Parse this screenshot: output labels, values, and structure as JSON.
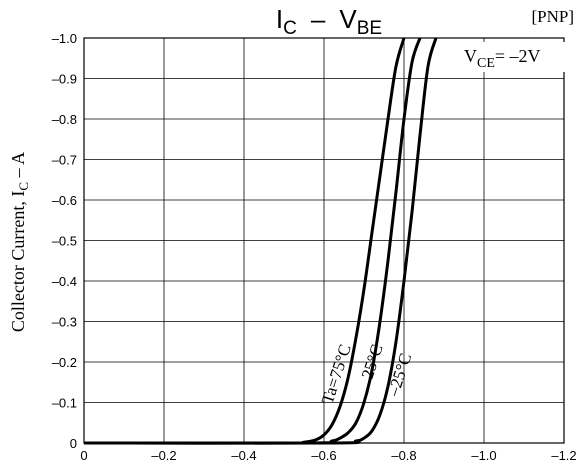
{
  "chart_data": {
    "type": "line",
    "title": {
      "main": "I",
      "main_sub": "C",
      "dash": "–",
      "second": "V",
      "second_sub": "BE"
    },
    "tag": "[PNP]",
    "condition": {
      "prefix": "V",
      "sub": "CE",
      "value": "= –2V"
    },
    "ylabel": {
      "text": "Collector Current, I",
      "sub": "C",
      "suffix": " – A"
    },
    "xlim": [
      0,
      -1.2
    ],
    "ylim": [
      0,
      -1.0
    ],
    "x_ticks": [
      0,
      -0.2,
      -0.4,
      -0.6,
      -0.8,
      -1.0,
      -1.2
    ],
    "x_tick_labels": [
      "0",
      "–0.2",
      "–0.4",
      "–0.6",
      "–0.8",
      "–1.0",
      "–1.2"
    ],
    "y_ticks": [
      0,
      -0.1,
      -0.2,
      -0.3,
      -0.4,
      -0.5,
      -0.6,
      -0.7,
      -0.8,
      -0.9,
      -1.0
    ],
    "y_tick_labels": [
      "0",
      "–0.1",
      "–0.2",
      "–0.3",
      "–0.4",
      "–0.5",
      "–0.6",
      "–0.7",
      "–0.8",
      "–0.9",
      "–1.0"
    ],
    "grid": true,
    "series": [
      {
        "name": "Ta=75°C",
        "x": [
          0,
          -0.5,
          -0.55,
          -0.58,
          -0.6,
          -0.62,
          -0.64,
          -0.66,
          -0.68,
          -0.7,
          -0.72,
          -0.74,
          -0.76,
          -0.78,
          -0.8
        ],
        "y": [
          0,
          0,
          -0.002,
          -0.008,
          -0.02,
          -0.045,
          -0.09,
          -0.16,
          -0.26,
          -0.38,
          -0.52,
          -0.66,
          -0.8,
          -0.93,
          -1.0
        ]
      },
      {
        "name": "25°C",
        "x": [
          0,
          -0.56,
          -0.62,
          -0.64,
          -0.66,
          -0.68,
          -0.7,
          -0.72,
          -0.74,
          -0.76,
          -0.78,
          -0.8,
          -0.82,
          -0.84
        ],
        "y": [
          0,
          0,
          -0.005,
          -0.012,
          -0.025,
          -0.05,
          -0.1,
          -0.18,
          -0.3,
          -0.45,
          -0.62,
          -0.8,
          -0.94,
          -1.0
        ]
      },
      {
        "name": "–25°C",
        "x": [
          0,
          -0.62,
          -0.68,
          -0.7,
          -0.72,
          -0.74,
          -0.76,
          -0.78,
          -0.8,
          -0.82,
          -0.84,
          -0.86,
          -0.88
        ],
        "y": [
          0,
          0,
          -0.005,
          -0.012,
          -0.03,
          -0.07,
          -0.14,
          -0.25,
          -0.4,
          -0.57,
          -0.76,
          -0.93,
          -1.0
        ]
      }
    ]
  }
}
